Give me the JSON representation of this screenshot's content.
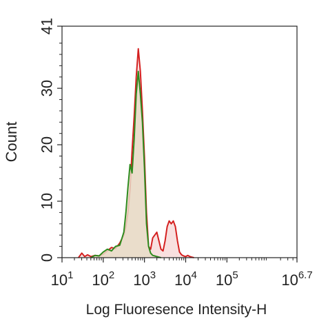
{
  "chart_data": {
    "type": "area",
    "title": "",
    "xlabel": "Log Fluoresence Intensity-H",
    "ylabel": "Count",
    "x_scale": "log10",
    "xlim_log10": [
      1,
      6.7
    ],
    "ylim": [
      0,
      41
    ],
    "x_ticks": [
      {
        "base": "10",
        "exp": "1"
      },
      {
        "base": "10",
        "exp": "2"
      },
      {
        "base": "10",
        "exp": "3"
      },
      {
        "base": "10",
        "exp": "4"
      },
      {
        "base": "10",
        "exp": "5"
      },
      {
        "base": "10",
        "exp": "6.7"
      }
    ],
    "y_ticks": [
      "0",
      "10",
      "20",
      "30",
      "41"
    ],
    "grid": false,
    "legend": "none",
    "series": [
      {
        "color": "#d42020",
        "fill": "#f5d6d4",
        "x_log10": [
          1.4,
          1.48,
          1.55,
          1.62,
          1.7,
          1.8,
          1.9,
          2.0,
          2.1,
          2.2,
          2.3,
          2.4,
          2.5,
          2.55,
          2.6,
          2.65,
          2.7,
          2.75,
          2.8,
          2.85,
          2.9,
          2.95,
          3.0,
          3.05,
          3.1,
          3.15,
          3.2,
          3.25,
          3.3,
          3.35,
          3.4,
          3.45,
          3.5,
          3.55,
          3.6,
          3.65,
          3.7,
          3.75,
          3.8,
          3.85,
          3.9,
          3.95,
          4.0,
          4.05,
          4.1,
          4.15,
          4.2
        ],
        "y": [
          0,
          0.8,
          0.2,
          0.5,
          0.2,
          0.4,
          0.3,
          0.6,
          1.2,
          1.8,
          1.6,
          2.6,
          4.0,
          5.5,
          8.0,
          12.0,
          19.0,
          25.0,
          32.0,
          37.0,
          33.0,
          26.0,
          18.0,
          8.0,
          2.0,
          1.5,
          3.5,
          4.0,
          4.5,
          3.0,
          1.5,
          1.2,
          3.0,
          5.5,
          6.5,
          6.0,
          6.5,
          5.5,
          3.0,
          1.0,
          0.5,
          0.3,
          0.2,
          0.4,
          0.2,
          0.1,
          0
        ]
      },
      {
        "color": "#2e8b1e",
        "fill": "#e7dcc8",
        "x_log10": [
          1.7,
          1.8,
          1.9,
          2.0,
          2.1,
          2.2,
          2.3,
          2.4,
          2.5,
          2.55,
          2.6,
          2.65,
          2.7,
          2.75,
          2.8,
          2.85,
          2.9,
          2.95,
          3.0,
          3.05,
          3.1,
          3.15,
          3.2,
          3.25,
          3.3,
          3.35,
          3.4
        ],
        "y": [
          0,
          0.4,
          0.3,
          1.0,
          1.5,
          1.2,
          2.0,
          2.2,
          4.5,
          8.0,
          12.5,
          16.5,
          15.0,
          21.0,
          29.0,
          33.0,
          29.0,
          24.0,
          16.0,
          6.0,
          2.0,
          0.8,
          0.4,
          0.3,
          0.2,
          0.1,
          0
        ]
      }
    ]
  }
}
